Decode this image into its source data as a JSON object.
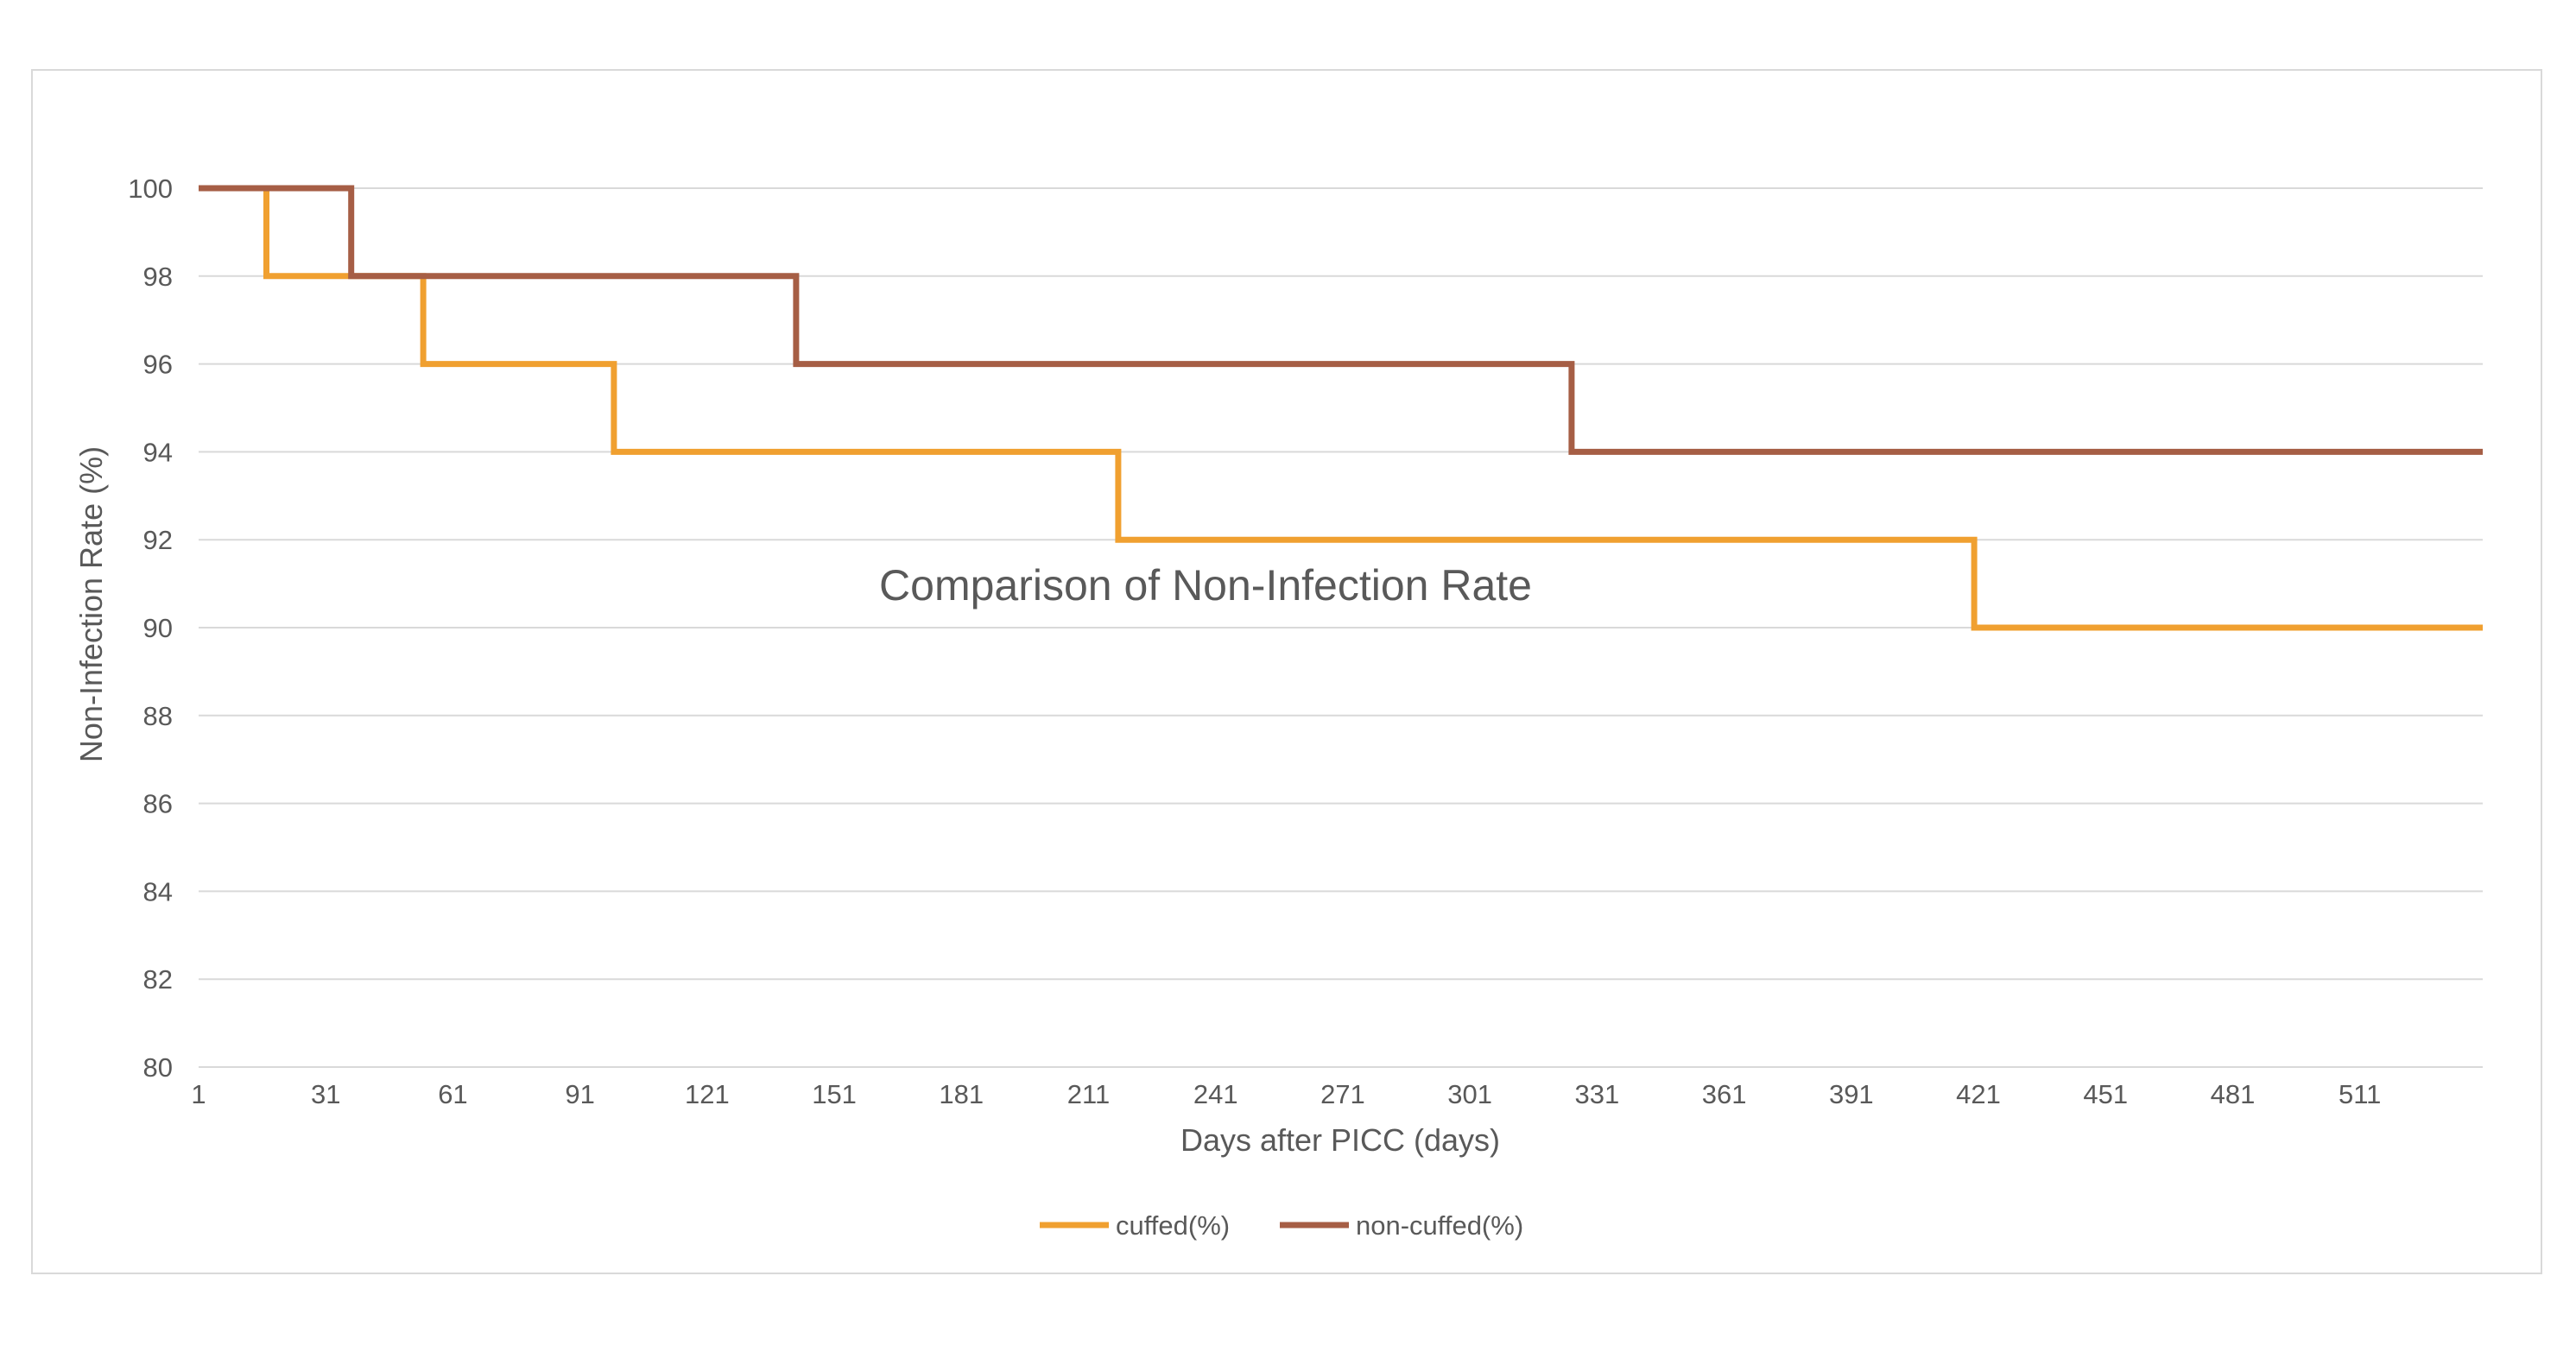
{
  "chart_data": {
    "type": "line",
    "title": "Comparison of Non-Infection Rate",
    "xlabel": "Days after PICC (days)",
    "ylabel": "Non-Infection Rate (%)",
    "xlim": [
      1,
      540
    ],
    "ylim": [
      80,
      100
    ],
    "x_ticks": [
      1,
      31,
      61,
      91,
      121,
      151,
      181,
      211,
      241,
      271,
      301,
      331,
      361,
      391,
      421,
      451,
      481,
      511
    ],
    "y_ticks": [
      80,
      82,
      84,
      86,
      88,
      90,
      92,
      94,
      96,
      98,
      100
    ],
    "grid": "horizontal",
    "legend_position": "bottom",
    "step": true,
    "series": [
      {
        "name": "cuffed(%)",
        "color": "#f0a030",
        "points": [
          [
            1,
            100
          ],
          [
            17,
            100
          ],
          [
            17,
            98
          ],
          [
            54,
            98
          ],
          [
            54,
            96
          ],
          [
            99,
            96
          ],
          [
            99,
            94
          ],
          [
            218,
            94
          ],
          [
            218,
            92
          ],
          [
            420,
            92
          ],
          [
            420,
            90
          ],
          [
            540,
            90
          ]
        ]
      },
      {
        "name": "non-cuffed(%)",
        "color": "#a65e45",
        "points": [
          [
            1,
            100
          ],
          [
            37,
            100
          ],
          [
            37,
            98
          ],
          [
            142,
            98
          ],
          [
            142,
            96
          ],
          [
            325,
            96
          ],
          [
            325,
            94
          ],
          [
            540,
            94
          ]
        ]
      }
    ]
  }
}
